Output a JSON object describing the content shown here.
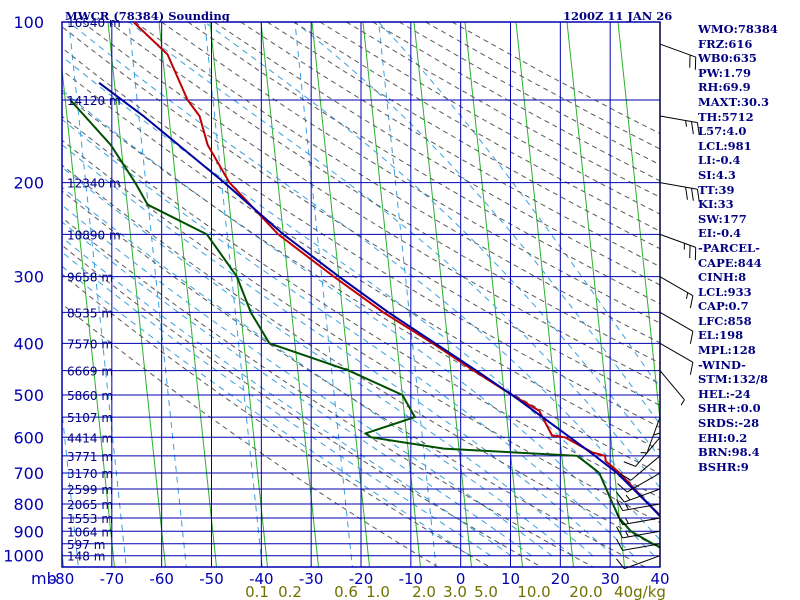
{
  "header": {
    "station_title": "MWCR (78384) Sounding",
    "valid_time": "1200Z 11 JAN 26"
  },
  "indices": [
    "WMO:78384",
    "FRZ:616",
    "WB0:635",
    "PW:1.79",
    "RH:69.9",
    "MAXT:30.3",
    "TH:5712",
    "L57:4.0",
    "LCL:981",
    "LI:-0.4",
    "SI:4.3",
    "TT:39",
    "KI:33",
    "SW:177",
    "EI:-0.4",
    "-PARCEL-",
    "CAPE:844",
    "CINH:8",
    "LCL:933",
    "CAP:0.7",
    "LFC:858",
    "EL:198",
    "MPL:128",
    "-WIND-",
    "STM:132/8",
    "HEL:-24",
    "SHR+:0.0",
    "SRDS:-28",
    "EHI:0.2",
    "BRN:98.4",
    "BSHR:9"
  ],
  "colors": {
    "grid": "#0000b0",
    "dry_adiabat": "#5a5a5a",
    "moist_adiabat": "#3aa0e0",
    "isotherm": "#2cb02c",
    "temperature": "#c00000",
    "dewpoint": "#005000",
    "parcel": "#0000a0",
    "label": "#000080",
    "mixing_label": "#707000"
  },
  "chart_data": {
    "type": "skew-t",
    "title": "MWCR (78384) Sounding",
    "subtitle": "1200Z 11 JAN 26",
    "xlabel": "mb",
    "pressure_levels": [
      100,
      200,
      300,
      400,
      500,
      600,
      700,
      800,
      900,
      1000
    ],
    "pressure_range": [
      100,
      1050
    ],
    "temperature_ticks": [
      -80,
      -70,
      -60,
      -50,
      -40,
      -30,
      -20,
      -10,
      0,
      10,
      20,
      30,
      40
    ],
    "temperature_tick_labels": [
      "-80",
      "-70",
      "-60",
      "-50",
      "-40",
      "-30",
      "-20",
      "-10",
      "0",
      "10",
      "20",
      "30",
      "40"
    ],
    "height_labels": [
      {
        "p": 100,
        "text": "16540 m"
      },
      {
        "p": 140,
        "text": "14120 m"
      },
      {
        "p": 200,
        "text": "12340 m"
      },
      {
        "p": 250,
        "text": "10890 m"
      },
      {
        "p": 300,
        "text": "9658 m"
      },
      {
        "p": 350,
        "text": "8535 m"
      },
      {
        "p": 400,
        "text": "7570 m"
      },
      {
        "p": 450,
        "text": "6669 m"
      },
      {
        "p": 500,
        "text": "5860 m"
      },
      {
        "p": 550,
        "text": "5107 m"
      },
      {
        "p": 600,
        "text": "4414 m"
      },
      {
        "p": 650,
        "text": "3771 m"
      },
      {
        "p": 700,
        "text": "3170 m"
      },
      {
        "p": 750,
        "text": "2599 m"
      },
      {
        "p": 800,
        "text": "2065 m"
      },
      {
        "p": 850,
        "text": "1553 m"
      },
      {
        "p": 900,
        "text": "1064 m"
      },
      {
        "p": 950,
        "text": "597 m"
      },
      {
        "p": 1000,
        "text": "148 m"
      }
    ],
    "mixing_ratio_labels": [
      "0.1",
      "0.2",
      "0.6",
      "1.0",
      "2.0",
      "3.0",
      "5.0",
      "10.0",
      "20.0",
      "40g/kg"
    ],
    "mixing_ratio_values": [
      0.1,
      0.2,
      0.6,
      1.0,
      2.0,
      3.0,
      5.0,
      10.0,
      20.0,
      40.0
    ],
    "series": [
      {
        "name": "Temperature",
        "points": [
          [
            100,
            -75
          ],
          [
            115,
            -69
          ],
          [
            140,
            -66
          ],
          [
            150,
            -64
          ],
          [
            170,
            -63
          ],
          [
            200,
            -59.5
          ],
          [
            250,
            -51
          ],
          [
            300,
            -41
          ],
          [
            350,
            -32
          ],
          [
            400,
            -23
          ],
          [
            450,
            -15.5
          ],
          [
            500,
            -8.5
          ],
          [
            535,
            -3.5
          ],
          [
            550,
            -3
          ],
          [
            595,
            -1.5
          ],
          [
            600,
            1
          ],
          [
            640,
            6
          ],
          [
            650,
            8.5
          ],
          [
            665,
            8.5
          ],
          [
            700,
            11
          ],
          [
            800,
            16
          ],
          [
            850,
            18.5
          ],
          [
            900,
            21
          ],
          [
            950,
            23
          ],
          [
            1000,
            24.8
          ],
          [
            1012,
            25.6
          ]
        ]
      },
      {
        "name": "Dewpoint",
        "points": [
          [
            140,
            -89
          ],
          [
            170,
            -82
          ],
          [
            200,
            -78
          ],
          [
            220,
            -76
          ],
          [
            250,
            -65
          ],
          [
            300,
            -60
          ],
          [
            350,
            -58
          ],
          [
            400,
            -55
          ],
          [
            450,
            -40
          ],
          [
            500,
            -30
          ],
          [
            550,
            -28
          ],
          [
            590,
            -38
          ],
          [
            600,
            -37
          ],
          [
            630,
            -23
          ],
          [
            650,
            3
          ],
          [
            680,
            5.5
          ],
          [
            700,
            7
          ],
          [
            800,
            9
          ],
          [
            850,
            10
          ],
          [
            900,
            12
          ],
          [
            950,
            16
          ],
          [
            970,
            18
          ],
          [
            1000,
            20
          ],
          [
            1012,
            25.6
          ]
        ]
      },
      {
        "name": "Parcel",
        "points": [
          [
            130,
            -83
          ],
          [
            150,
            -75
          ],
          [
            200,
            -60.5
          ],
          [
            250,
            -50
          ],
          [
            300,
            -40
          ],
          [
            350,
            -31
          ],
          [
            400,
            -22.5
          ],
          [
            450,
            -15
          ],
          [
            500,
            -8.5
          ],
          [
            550,
            -3
          ],
          [
            600,
            2
          ],
          [
            650,
            6.5
          ],
          [
            700,
            10.5
          ],
          [
            800,
            16
          ],
          [
            900,
            20.5
          ],
          [
            1000,
            25
          ],
          [
            1012,
            25.6
          ]
        ]
      }
    ],
    "wind_barbs": [
      {
        "p": 110,
        "dir": 290,
        "kt": 20
      },
      {
        "p": 150,
        "dir": 280,
        "kt": 25
      },
      {
        "p": 200,
        "dir": 280,
        "kt": 30
      },
      {
        "p": 250,
        "dir": 290,
        "kt": 25
      },
      {
        "p": 300,
        "dir": 300,
        "kt": 15
      },
      {
        "p": 350,
        "dir": 300,
        "kt": 10
      },
      {
        "p": 400,
        "dir": 300,
        "kt": 10
      },
      {
        "p": 450,
        "dir": 320,
        "kt": 5
      },
      {
        "p": 500,
        "dir": 360,
        "kt": 5
      },
      {
        "p": 550,
        "dir": 20,
        "kt": 5
      },
      {
        "p": 600,
        "dir": 40,
        "kt": 10
      },
      {
        "p": 650,
        "dir": 50,
        "kt": 10
      },
      {
        "p": 700,
        "dir": 60,
        "kt": 10
      },
      {
        "p": 750,
        "dir": 70,
        "kt": 15
      },
      {
        "p": 800,
        "dir": 80,
        "kt": 15
      },
      {
        "p": 850,
        "dir": 80,
        "kt": 15
      },
      {
        "p": 900,
        "dir": 80,
        "kt": 15
      },
      {
        "p": 950,
        "dir": 80,
        "kt": 10
      },
      {
        "p": 1000,
        "dir": 70,
        "kt": 10
      }
    ]
  }
}
